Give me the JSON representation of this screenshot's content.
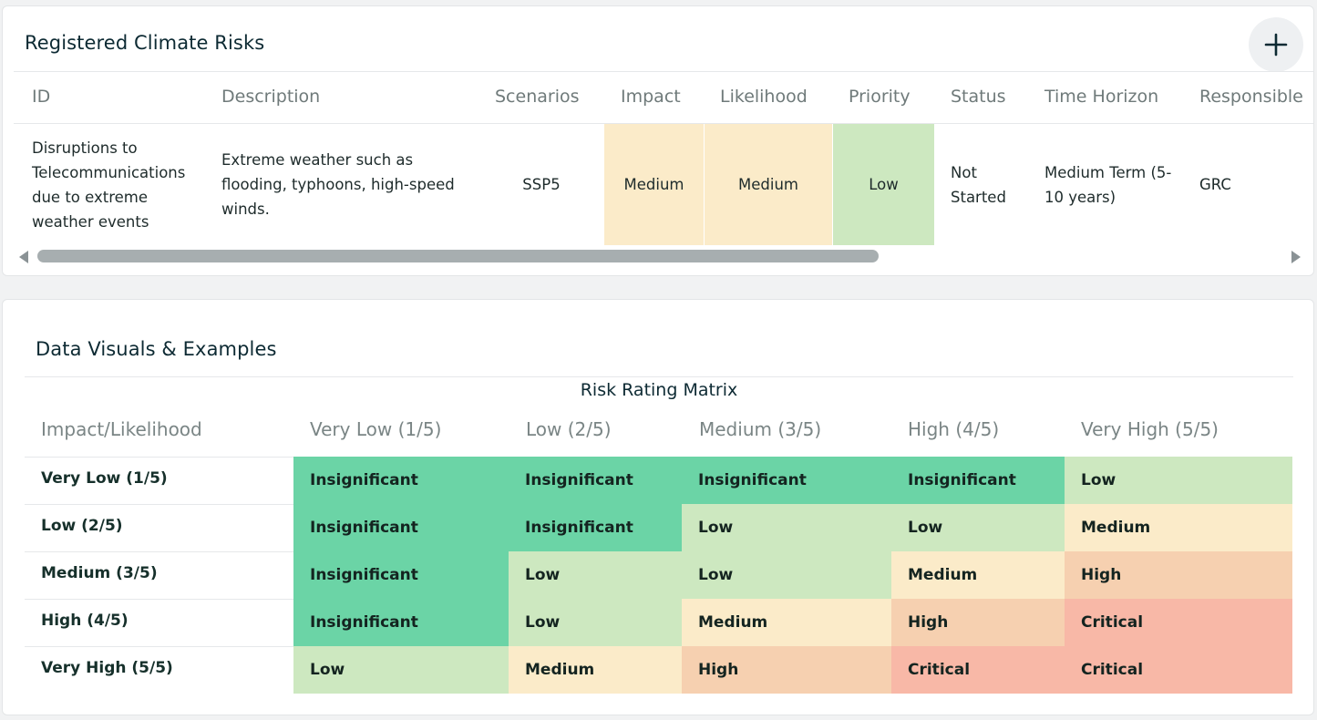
{
  "risks_card": {
    "title": "Registered Climate Risks",
    "add_icon": "plus-icon",
    "columns": [
      "ID",
      "Description",
      "Scenarios",
      "Impact",
      "Likelihood",
      "Priority",
      "Status",
      "Time Horizon",
      "Responsible"
    ],
    "row": {
      "id": "Disruptions to Telecommunications due to extreme weather events",
      "description": "Extreme weather such as flooding, typhoons, high-speed winds.",
      "scenarios": "SSP5",
      "impact": "Medium",
      "likelihood": "Medium",
      "priority": "Low",
      "status": "Not Started",
      "time_horizon": "Medium Term (5-10 years)",
      "responsible": "GRC"
    },
    "horizontal_scroll": {
      "thumb_fraction": 0.65,
      "left_icon": "scroll-left-arrow-icon",
      "right_icon": "scroll-right-arrow-icon"
    }
  },
  "visuals_card": {
    "title": "Data Visuals & Examples",
    "matrix": {
      "title": "Risk Rating Matrix",
      "corner_label": "Impact/Likelihood",
      "column_headers": [
        "Very Low (1/5)",
        "Low (2/5)",
        "Medium (3/5)",
        "High (4/5)",
        "Very High (5/5)"
      ],
      "row_headers": [
        "Very Low (1/5)",
        "Low (2/5)",
        "Medium (3/5)",
        "High (4/5)",
        "Very High (5/5)"
      ],
      "cells": [
        [
          "Insignificant",
          "Insignificant",
          "Insignificant",
          "Insignificant",
          "Low"
        ],
        [
          "Insignificant",
          "Insignificant",
          "Low",
          "Low",
          "Medium"
        ],
        [
          "Insignificant",
          "Low",
          "Low",
          "Medium",
          "High"
        ],
        [
          "Insignificant",
          "Low",
          "Medium",
          "High",
          "Critical"
        ],
        [
          "Low",
          "Medium",
          "High",
          "Critical",
          "Critical"
        ]
      ]
    }
  },
  "colors": {
    "Insignificant": "#6bd4a6",
    "Low": "#cde8c0",
    "Medium": "#fbebc9",
    "High": "#f6d0b0",
    "Critical": "#f8b8a7"
  }
}
